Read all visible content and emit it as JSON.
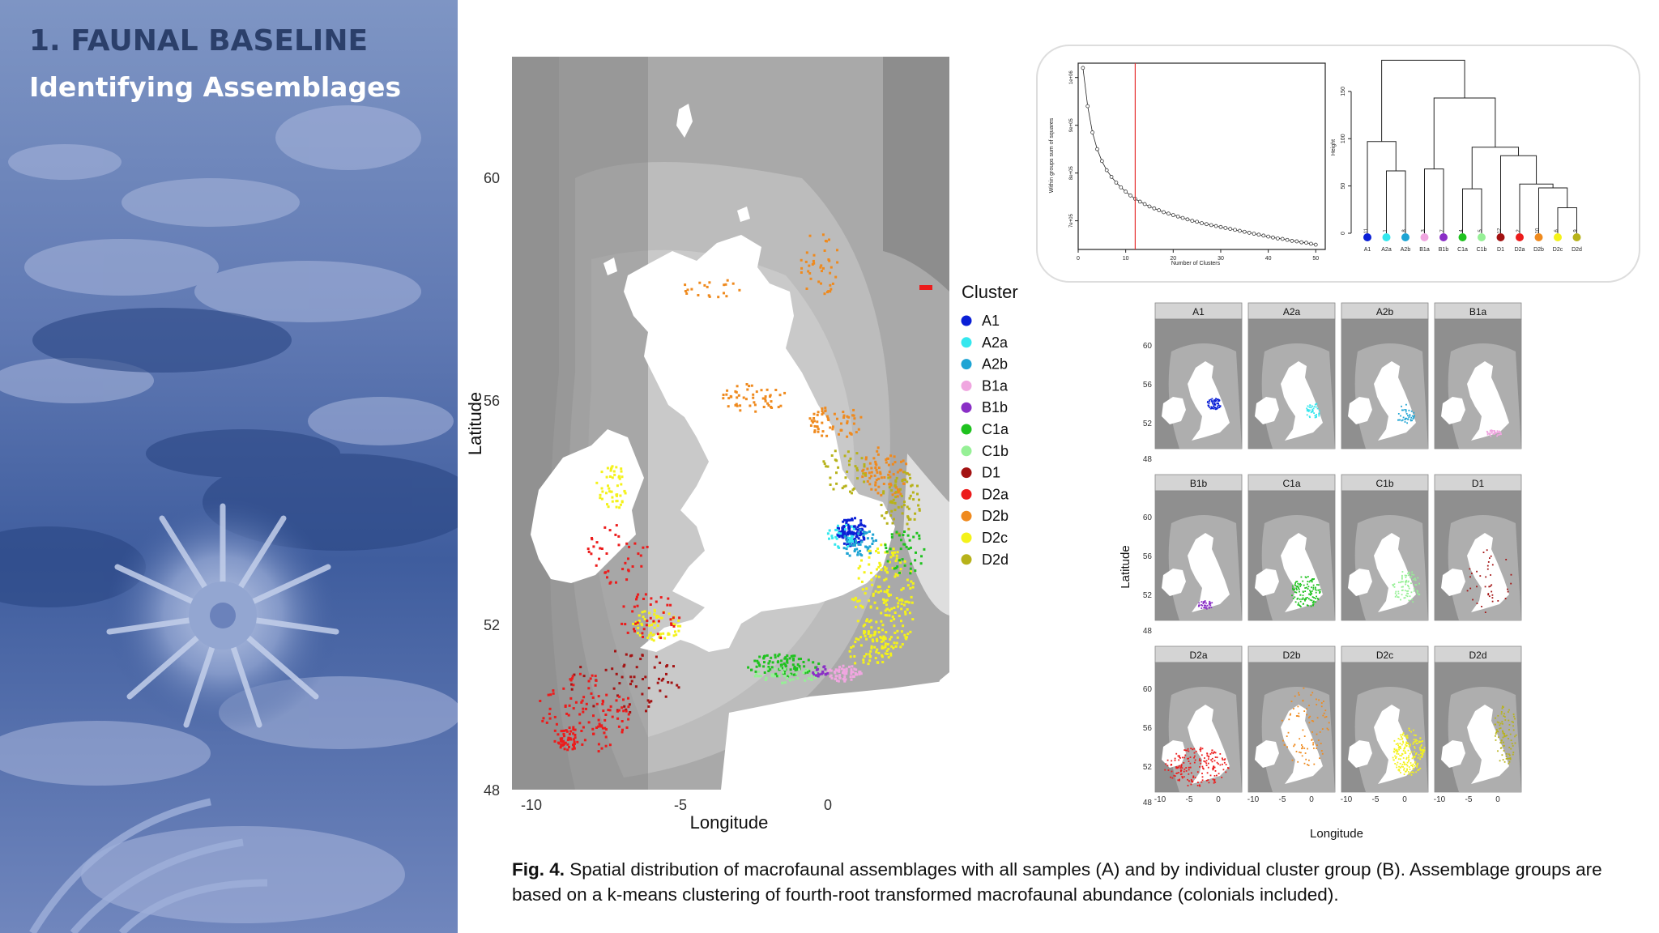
{
  "slide": {
    "title": "1. FAUNAL BASELINE",
    "subtitle": "Identifying Assemblages"
  },
  "caption": {
    "label": "Fig. 4.",
    "text": "Spatial distribution of macrofaunal assemblages with all samples (A) and by individual cluster group (B). Assemblage groups are based on a k-means clustering of fourth-root transformed macrofaunal abundance (colonials included)."
  },
  "main_map": {
    "xlabel": "Longitude",
    "ylabel": "Latitude",
    "xticks": [
      "-10",
      "-5",
      "0"
    ],
    "yticks": [
      "60",
      "56",
      "52",
      "48"
    ],
    "legend_title": "Cluster"
  },
  "clusters": [
    {
      "name": "A1",
      "color": "#0a1fd6"
    },
    {
      "name": "A2a",
      "color": "#34e7ee"
    },
    {
      "name": "A2b",
      "color": "#1ea4d4"
    },
    {
      "name": "B1a",
      "color": "#f0a6e0"
    },
    {
      "name": "B1b",
      "color": "#8a2fc6"
    },
    {
      "name": "C1a",
      "color": "#1fc21f"
    },
    {
      "name": "C1b",
      "color": "#96f096"
    },
    {
      "name": "D1",
      "color": "#a31212"
    },
    {
      "name": "D2a",
      "color": "#ec1c1c"
    },
    {
      "name": "D2b",
      "color": "#ef8a1e"
    },
    {
      "name": "D2c",
      "color": "#f4f21a"
    },
    {
      "name": "D2d",
      "color": "#b7b21a"
    }
  ],
  "facets": {
    "ylabel": "Latitude",
    "xlabel": "Longitude",
    "yticks": [
      "60",
      "56",
      "52",
      "48"
    ],
    "xticks": [
      "-10",
      "-5",
      "0"
    ]
  },
  "elbow": {
    "xlabel": "Number of Clusters",
    "ylabel": "Within groups sum of squares",
    "xticks": [
      "0",
      "10",
      "20",
      "30",
      "40",
      "50"
    ],
    "yticks": [
      "1e+06",
      "9e+05",
      "8e+05",
      "7e+05"
    ],
    "selected_k": 12
  },
  "dendrogram": {
    "ylabel": "Height",
    "yticks": [
      "150",
      "100",
      "50",
      "0"
    ],
    "leaf_numbers": [
      "11",
      "1",
      "8",
      "3",
      "7",
      "4",
      "5",
      "12",
      "2",
      "10",
      "6",
      "9"
    ]
  },
  "chart_data": [
    {
      "type": "line",
      "title": "",
      "xlabel": "Number of Clusters",
      "ylabel": "Within groups sum of squares",
      "x": [
        1,
        2,
        3,
        4,
        5,
        6,
        7,
        8,
        9,
        10,
        11,
        12,
        13,
        14,
        15,
        16,
        17,
        18,
        19,
        20,
        21,
        22,
        23,
        24,
        25,
        26,
        27,
        28,
        29,
        30,
        31,
        32,
        33,
        34,
        35,
        36,
        37,
        38,
        39,
        40,
        41,
        42,
        43,
        44,
        45,
        46,
        47,
        48,
        49,
        50
      ],
      "y": [
        1020000,
        940000,
        885000,
        850000,
        825000,
        806000,
        792000,
        780000,
        770000,
        761000,
        753000,
        746000,
        740000,
        735000,
        730000,
        726000,
        722000,
        718000,
        715000,
        712000,
        709000,
        706000,
        703000,
        700000,
        698000,
        695000,
        693000,
        691000,
        689000,
        687000,
        685000,
        683000,
        681000,
        679000,
        677000,
        675000,
        673000,
        671000,
        669000,
        667000,
        665000,
        663000,
        662000,
        660000,
        658000,
        657000,
        655000,
        654000,
        652000,
        650000
      ],
      "xlim": [
        0,
        52
      ],
      "ylim": [
        640000,
        1030000
      ],
      "vline": 12
    },
    {
      "type": "dendrogram",
      "ylabel": "Height",
      "ylim": [
        0,
        185
      ],
      "leaves": [
        "A1",
        "A2a",
        "A2b",
        "B1a",
        "B1b",
        "C1a",
        "C1b",
        "D1",
        "D2a",
        "D2b",
        "D2c",
        "D2d"
      ],
      "merges": [
        {
          "left": "A2a",
          "right": "A2b",
          "height": 66
        },
        {
          "left": "A1",
          "right": "A2a+A2b",
          "height": 97
        },
        {
          "left": "B1a",
          "right": "B1b",
          "height": 68
        },
        {
          "left": "C1a",
          "right": "C1b",
          "height": 47
        },
        {
          "left": "D2c",
          "right": "D2d",
          "height": 27
        },
        {
          "left": "D2b",
          "right": "D2c+D2d",
          "height": 48
        },
        {
          "left": "D2a",
          "right": "D2b+D2c+D2d",
          "height": 52
        },
        {
          "left": "D1",
          "right": "D2a-D2d",
          "height": 82
        },
        {
          "left": "C1a+C1b",
          "right": "D1-D2d",
          "height": 91
        },
        {
          "left": "B1a+B1b",
          "right": "C-D",
          "height": 143
        },
        {
          "left": "A",
          "right": "B-D",
          "height": 183
        }
      ]
    }
  ]
}
